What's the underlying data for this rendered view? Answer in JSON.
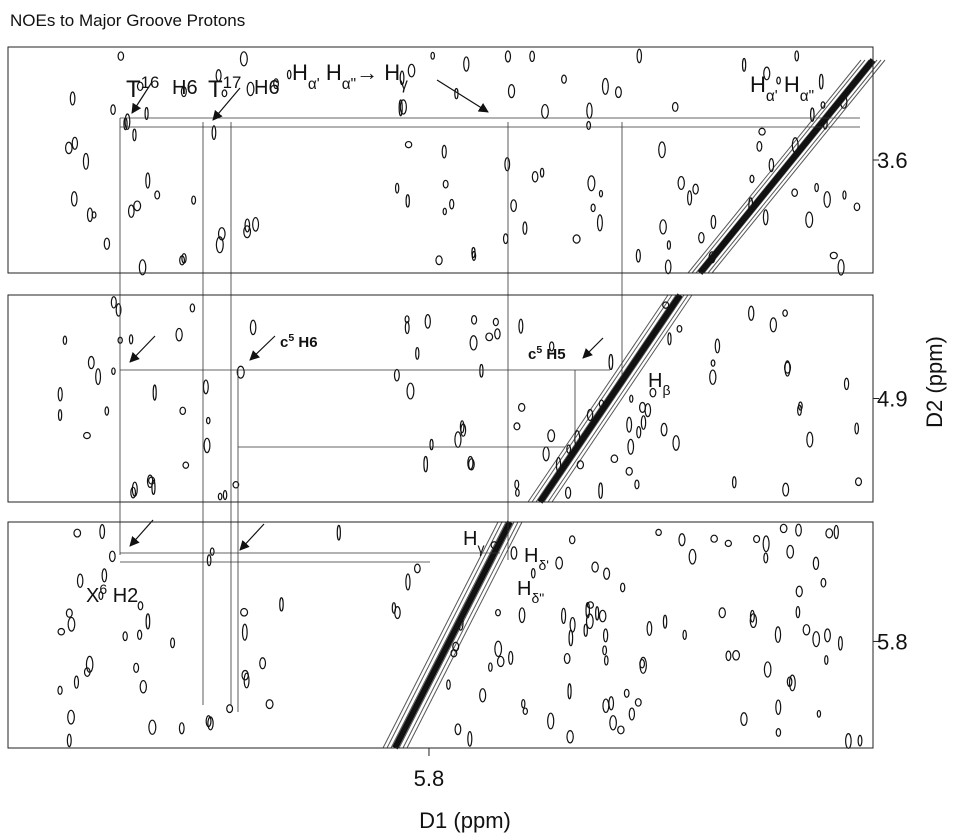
{
  "title": "NOEs to Major Groove Protons",
  "x_axis": {
    "label": "D1 (ppm)",
    "xlim": [
      7.26,
      4.26
    ],
    "xticks": [
      5.8
    ]
  },
  "y_axis": {
    "label": "D2 (ppm)",
    "panels": [
      {
        "ylim": [
          3.25,
          3.95
        ],
        "yticks": [
          3.6
        ]
      },
      {
        "ylim": [
          4.55,
          5.25
        ],
        "yticks": [
          4.9
        ]
      },
      {
        "ylim": [
          5.43,
          6.13
        ],
        "yticks": [
          5.8
        ]
      }
    ]
  },
  "annotations": [
    {
      "parts": [
        {
          "t": "T"
        },
        {
          "sup": "16"
        }
      ]
    },
    {
      "parts": [
        {
          "t": "H6"
        }
      ]
    },
    {
      "parts": [
        {
          "t": "T"
        },
        {
          "sup": "17"
        }
      ]
    },
    {
      "parts": [
        {
          "t": "H6"
        }
      ]
    },
    {
      "parts": [
        {
          "t": "H"
        },
        {
          "sub": "α'"
        },
        {
          "t": " H"
        },
        {
          "sub": "α\""
        },
        {
          "t": "→ H"
        },
        {
          "sub": "γ"
        }
      ]
    },
    {
      "parts": [
        {
          "t": "H"
        },
        {
          "sub": "α'"
        },
        {
          "t": " H"
        },
        {
          "sub": "α\""
        }
      ]
    },
    {
      "parts": [
        {
          "t": "c"
        },
        {
          "sup": "5"
        },
        {
          "t": " H6"
        }
      ]
    },
    {
      "parts": [
        {
          "t": "c"
        },
        {
          "sup": "5"
        },
        {
          "t": " H5"
        }
      ]
    },
    {
      "parts": [
        {
          "t": "H"
        },
        {
          "sub": "β"
        }
      ]
    },
    {
      "parts": [
        {
          "t": "H"
        },
        {
          "sub": "γ"
        }
      ]
    },
    {
      "parts": [
        {
          "t": "H"
        },
        {
          "sub": "δ'"
        }
      ]
    },
    {
      "parts": [
        {
          "t": "H"
        },
        {
          "sub": "δ\""
        }
      ]
    },
    {
      "parts": [
        {
          "t": "X"
        },
        {
          "sup": "6"
        },
        {
          "t": " H2"
        }
      ]
    }
  ]
}
